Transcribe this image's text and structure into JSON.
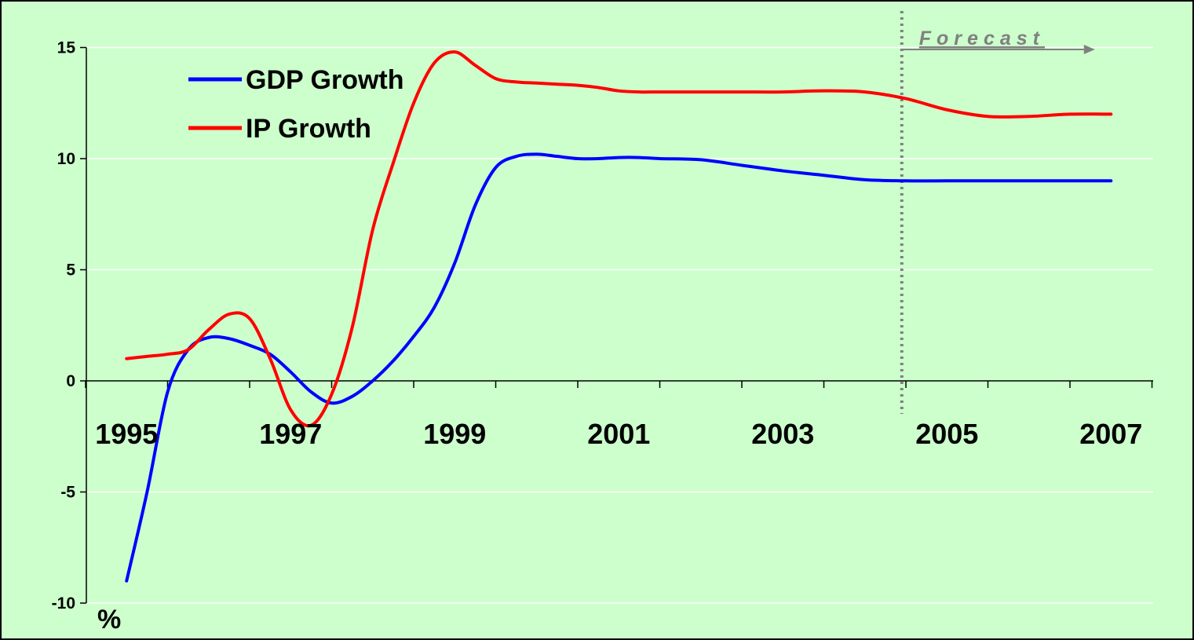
{
  "chart_data": {
    "type": "line",
    "title": "",
    "xlabel": "",
    "ylabel": "%",
    "ylim": [
      -10,
      15
    ],
    "xlim": [
      1995,
      2008
    ],
    "yticks": [
      -10,
      -5,
      0,
      5,
      10,
      15
    ],
    "xtick_labels": [
      "1995",
      "1997",
      "1999",
      "2001",
      "2003",
      "2005",
      "2007"
    ],
    "grid": "horizontal",
    "legend_position": "top-left",
    "background_color": "#ccffcc",
    "forecast_start": 2004.95,
    "forecast_label": "Forecast",
    "series": [
      {
        "name": "GDP Growth",
        "color": "#0000ff",
        "x": [
          1995.5,
          1995.75,
          1996.0,
          1996.25,
          1996.5,
          1996.75,
          1997.0,
          1997.25,
          1997.5,
          1997.75,
          1998.0,
          1998.25,
          1998.5,
          1998.75,
          1999.0,
          1999.25,
          1999.5,
          1999.75,
          2000.0,
          2000.25,
          2000.5,
          2000.75,
          2001.0,
          2001.25,
          2001.5,
          2001.75,
          2002.0,
          2002.5,
          2003.0,
          2003.5,
          2004.0,
          2004.5,
          2005.0,
          2005.5,
          2006.0,
          2006.5,
          2007.0,
          2007.5
        ],
        "y": [
          -9.0,
          -5.0,
          -0.5,
          1.4,
          1.95,
          1.9,
          1.6,
          1.2,
          0.4,
          -0.5,
          -1.0,
          -0.7,
          0.0,
          0.9,
          2.0,
          3.3,
          5.3,
          7.9,
          9.6,
          10.1,
          10.2,
          10.1,
          10.0,
          10.0,
          10.05,
          10.05,
          10.0,
          9.95,
          9.7,
          9.45,
          9.25,
          9.05,
          9.0,
          9.0,
          9.0,
          9.0,
          9.0,
          9.0
        ]
      },
      {
        "name": "IP Growth",
        "color": "#ff0000",
        "x": [
          1995.5,
          1995.75,
          1996.0,
          1996.25,
          1996.5,
          1996.75,
          1997.0,
          1997.25,
          1997.5,
          1997.75,
          1998.0,
          1998.25,
          1998.5,
          1998.75,
          1999.0,
          1999.25,
          1999.5,
          1999.75,
          2000.0,
          2000.25,
          2000.5,
          2000.75,
          2001.0,
          2001.25,
          2001.5,
          2001.75,
          2002.0,
          2002.5,
          2003.0,
          2003.5,
          2004.0,
          2004.5,
          2005.0,
          2005.5,
          2006.0,
          2006.5,
          2007.0,
          2007.5
        ],
        "y": [
          1.0,
          1.1,
          1.2,
          1.4,
          2.3,
          3.0,
          2.8,
          1.0,
          -1.3,
          -2.0,
          -0.6,
          2.4,
          6.8,
          9.8,
          12.5,
          14.3,
          14.8,
          14.2,
          13.6,
          13.45,
          13.4,
          13.35,
          13.3,
          13.2,
          13.05,
          13.0,
          13.0,
          13.0,
          13.0,
          13.0,
          13.05,
          13.0,
          12.7,
          12.2,
          11.9,
          11.9,
          12.0,
          12.0
        ]
      }
    ]
  }
}
